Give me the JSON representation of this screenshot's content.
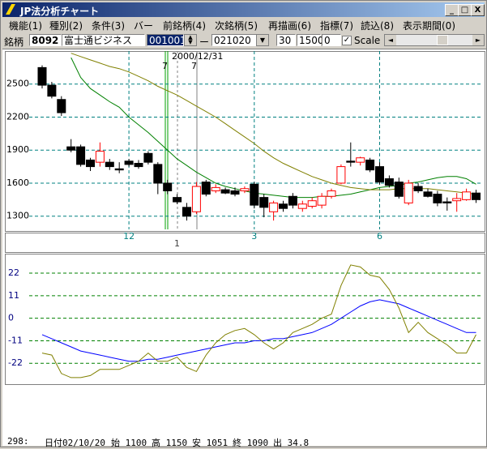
{
  "window": {
    "title": "JP法分析チャート"
  },
  "menu": [
    "機能(1)",
    "種別(2)",
    "条件(3)",
    "バー",
    "前銘柄(4)",
    "次銘柄(5)",
    "再描画(6)",
    "指標(7)",
    "読込(8)",
    "表示期間(0)"
  ],
  "toolbar": {
    "label": "銘柄",
    "code": "8092",
    "name": "富士通ビジネス",
    "from": "001001",
    "dash": "ー",
    "to": "021020",
    "field1": "30",
    "field2": "1500",
    "field3": "0",
    "checkbox_label": "Scale"
  },
  "annotations": {
    "date": "2000/12/31",
    "marker_left": "7",
    "marker_right": "7",
    "strip_mark": "1"
  },
  "status": [
    "298:",
    "日付02/10/20",
    "始 1100",
    "高 1150",
    "安 1051",
    "終 1090",
    "出 34.8"
  ],
  "chart_data": [
    {
      "type": "candlestick",
      "categories": [
        null,
        null,
        null,
        null,
        null,
        null,
        null,
        null,
        null,
        "12",
        null,
        null,
        null,
        null,
        null,
        null,
        null,
        null,
        null,
        null,
        null,
        null,
        "3",
        null,
        null,
        null,
        null,
        null,
        null,
        null,
        null,
        null,
        null,
        null,
        null,
        "6",
        null,
        null,
        null,
        null,
        null,
        null,
        null,
        null,
        null,
        null
      ],
      "open": [
        2650,
        2490,
        2360,
        1930,
        1930,
        1810,
        1790,
        1790,
        1730,
        1800,
        1780,
        1870,
        1770,
        1600,
        1470,
        1380,
        1340,
        1610,
        1530,
        1540,
        1530,
        1530,
        1590,
        1470,
        1340,
        1410,
        1480,
        1370,
        1390,
        1400,
        1480,
        1600,
        1800,
        1790,
        1810,
        1750,
        1640,
        1610,
        1420,
        1570,
        1520,
        1500,
        1430,
        1440,
        1450,
        1510
      ],
      "high": [
        2670,
        2520,
        2390,
        2000,
        1950,
        1830,
        1970,
        1820,
        1790,
        1820,
        1810,
        1890,
        1790,
        1630,
        1500,
        1420,
        1610,
        1630,
        1590,
        1560,
        1560,
        1570,
        1610,
        1500,
        1440,
        1440,
        1510,
        1440,
        1470,
        1510,
        1550,
        1770,
        1970,
        1840,
        1830,
        1790,
        1670,
        1650,
        1630,
        1600,
        1550,
        1530,
        1470,
        1510,
        1550,
        1540
      ],
      "low": [
        2460,
        2370,
        2210,
        1880,
        1750,
        1710,
        1750,
        1720,
        1690,
        1750,
        1730,
        1770,
        1500,
        1500,
        1410,
        1260,
        1320,
        1480,
        1510,
        1500,
        1480,
        1510,
        1370,
        1290,
        1260,
        1340,
        1370,
        1340,
        1370,
        1370,
        1460,
        1590,
        1750,
        1760,
        1700,
        1590,
        1560,
        1460,
        1400,
        1510,
        1470,
        1390,
        1350,
        1340,
        1440,
        1420
      ],
      "close": [
        2490,
        2390,
        2240,
        1900,
        1770,
        1750,
        1890,
        1750,
        1720,
        1770,
        1750,
        1790,
        1600,
        1530,
        1430,
        1300,
        1570,
        1500,
        1560,
        1510,
        1500,
        1550,
        1400,
        1380,
        1420,
        1370,
        1400,
        1410,
        1440,
        1480,
        1530,
        1750,
        1790,
        1830,
        1720,
        1610,
        1580,
        1480,
        1600,
        1530,
        1480,
        1420,
        1420,
        1460,
        1520,
        1450
      ],
      "up_color": "#ff0000",
      "down_color": "#000000",
      "series": [
        {
          "color": "#008000",
          "values": [
            null,
            null,
            null,
            2740,
            2560,
            2460,
            2400,
            2340,
            2290,
            2200,
            2130,
            2060,
            1980,
            1900,
            1820,
            1760,
            1700,
            1650,
            1600,
            1570,
            1550,
            1530,
            1510,
            1500,
            1490,
            1480,
            1470,
            1470,
            1470,
            1480,
            1480,
            1490,
            1500,
            1520,
            1540,
            1560,
            1570,
            1580,
            1600,
            1610,
            1630,
            1650,
            1660,
            1660,
            1640,
            1590
          ]
        },
        {
          "color": "#808000",
          "values": [
            null,
            null,
            null,
            2780,
            2750,
            2720,
            2690,
            2660,
            2640,
            2610,
            2570,
            2530,
            2480,
            2440,
            2400,
            2350,
            2300,
            2250,
            2200,
            2140,
            2080,
            2020,
            1960,
            1890,
            1830,
            1780,
            1740,
            1700,
            1660,
            1630,
            1600,
            1580,
            1560,
            1550,
            1540,
            1540,
            1540,
            1550,
            1550,
            1550,
            1550,
            1540,
            1530,
            1520,
            1510,
            1500
          ]
        }
      ],
      "ylim": [
        1180,
        2800
      ],
      "yticks": [
        1300,
        1600,
        1900,
        2200,
        2500
      ],
      "grid": true
    },
    {
      "type": "line",
      "series": [
        {
          "color": "#0000ff",
          "values": [
            -8,
            -10,
            -12,
            -14,
            -16,
            -17,
            -18,
            -19,
            -20,
            -21,
            -21,
            -20,
            -20,
            -19,
            -18,
            -17,
            -16,
            -15,
            -14,
            -13,
            -12,
            -12,
            -11,
            -11,
            -10,
            -10,
            -9,
            -8,
            -7,
            -5,
            -3,
            0,
            3,
            6,
            8,
            9,
            8,
            7,
            5,
            3,
            1,
            -1,
            -3,
            -5,
            -7,
            -7
          ]
        },
        {
          "color": "#808000",
          "values": [
            -17,
            -18,
            -27,
            -29,
            -29,
            -28,
            -25,
            -25,
            -25,
            -23,
            -21,
            -17,
            -21,
            -21,
            -19,
            -24,
            -26,
            -18,
            -12,
            -8,
            -6,
            -5,
            -8,
            -12,
            -15,
            -12,
            -7,
            -5,
            -3,
            0,
            2,
            16,
            26,
            25,
            21,
            20,
            14,
            5,
            -7,
            -2,
            -7,
            -10,
            -13,
            -17,
            -17,
            -8
          ]
        }
      ],
      "ylim": [
        -31,
        31.5
      ],
      "yticks": [
        -22,
        -11,
        0,
        11,
        22
      ],
      "grid": true
    }
  ]
}
